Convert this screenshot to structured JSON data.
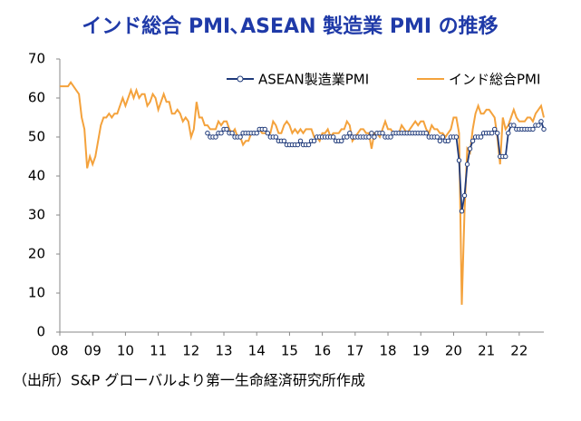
{
  "chart_data": {
    "type": "line",
    "title": "インド総合 PMI､ASEAN 製造業 PMI の推移",
    "note": "（出所）S&P グローバルより第一生命経済研究所作成",
    "categories": [
      "08",
      null,
      null,
      null,
      null,
      null,
      null,
      null,
      null,
      null,
      null,
      null,
      "09",
      null,
      null,
      null,
      null,
      null,
      null,
      null,
      null,
      null,
      null,
      null,
      "10",
      null,
      null,
      null,
      null,
      null,
      null,
      null,
      null,
      null,
      null,
      null,
      "11",
      null,
      null,
      null,
      null,
      null,
      null,
      null,
      null,
      null,
      null,
      null,
      "12",
      null,
      null,
      null,
      null,
      null,
      null,
      null,
      null,
      null,
      null,
      null,
      "13",
      null,
      null,
      null,
      null,
      null,
      null,
      null,
      null,
      null,
      null,
      null,
      "14",
      null,
      null,
      null,
      null,
      null,
      null,
      null,
      null,
      null,
      null,
      null,
      "15",
      null,
      null,
      null,
      null,
      null,
      null,
      null,
      null,
      null,
      null,
      null,
      "16",
      null,
      null,
      null,
      null,
      null,
      null,
      null,
      null,
      null,
      null,
      null,
      "17",
      null,
      null,
      null,
      null,
      null,
      null,
      null,
      null,
      null,
      null,
      null,
      "18",
      null,
      null,
      null,
      null,
      null,
      null,
      null,
      null,
      null,
      null,
      null,
      "19",
      null,
      null,
      null,
      null,
      null,
      null,
      null,
      null,
      null,
      null,
      null,
      "20",
      null,
      null,
      null,
      null,
      null,
      null,
      null,
      null,
      null,
      null,
      null,
      "21",
      null,
      null,
      null,
      null,
      null,
      null,
      null,
      null,
      null,
      null,
      null,
      "22",
      null,
      null,
      null,
      null,
      null,
      null,
      null,
      null,
      null
    ],
    "series": [
      {
        "name": "ASEAN製造業PMI",
        "color": "#1f3a7a",
        "markers": true,
        "values": [
          null,
          null,
          null,
          null,
          null,
          null,
          null,
          null,
          null,
          null,
          null,
          null,
          null,
          null,
          null,
          null,
          null,
          null,
          null,
          null,
          null,
          null,
          null,
          null,
          null,
          null,
          null,
          null,
          null,
          null,
          null,
          null,
          null,
          null,
          null,
          null,
          null,
          null,
          null,
          null,
          null,
          null,
          null,
          null,
          null,
          null,
          null,
          null,
          null,
          null,
          null,
          null,
          null,
          null,
          51,
          50,
          50,
          50,
          51,
          51,
          52,
          52,
          51,
          51,
          50,
          50,
          50,
          51,
          51,
          51,
          51,
          51,
          51,
          52,
          52,
          52,
          51,
          50,
          50,
          50,
          49,
          49,
          49,
          48,
          48,
          48,
          48,
          48,
          49,
          48,
          48,
          48,
          49,
          49,
          50,
          50,
          50,
          50,
          50,
          50,
          50,
          49,
          49,
          49,
          50,
          50,
          51,
          50,
          50,
          50,
          50,
          50,
          50,
          50,
          51,
          50,
          51,
          51,
          51,
          50,
          50,
          50,
          51,
          51,
          51,
          51,
          51,
          51,
          51,
          51,
          51,
          51,
          51,
          51,
          51,
          50,
          50,
          50,
          50,
          49,
          50,
          49,
          49,
          50,
          50,
          50,
          44,
          31,
          35,
          43,
          47,
          49,
          50,
          50,
          50,
          51,
          51,
          51,
          51,
          52,
          51,
          45,
          45,
          45,
          51,
          53,
          53,
          52,
          52,
          52,
          52,
          52,
          52,
          52,
          53,
          53,
          54,
          52
        ]
      },
      {
        "name": "インド総合PMI",
        "color": "#f4a23c",
        "markers": false,
        "values": [
          63,
          63,
          63,
          63,
          64,
          63,
          62,
          61,
          55,
          52,
          42,
          45,
          43,
          45,
          49,
          53,
          55,
          55,
          56,
          55,
          56,
          56,
          58,
          60,
          58,
          60,
          62,
          60,
          62,
          60,
          61,
          61,
          58,
          59,
          61,
          60,
          57,
          59,
          61,
          59,
          59,
          56,
          56,
          57,
          56,
          54,
          55,
          54,
          50,
          52,
          59,
          55,
          55,
          53,
          53,
          52,
          52,
          52,
          54,
          53,
          54,
          54,
          52,
          51,
          52,
          50,
          50,
          48,
          49,
          49,
          51,
          51,
          51,
          52,
          51,
          51,
          51,
          51,
          54,
          53,
          51,
          51,
          53,
          54,
          53,
          51,
          52,
          51,
          52,
          51,
          52,
          52,
          52,
          50,
          50,
          49,
          51,
          51,
          52,
          50,
          51,
          51,
          51,
          52,
          52,
          54,
          53,
          49,
          50,
          51,
          52,
          52,
          51,
          51,
          47,
          51,
          51,
          50,
          52,
          54,
          52,
          52,
          51,
          51,
          51,
          53,
          52,
          51,
          52,
          53,
          54,
          53,
          54,
          54,
          52,
          51,
          53,
          52,
          52,
          51,
          51,
          50,
          51,
          52,
          55,
          55,
          51,
          7,
          31,
          47,
          46,
          52,
          56,
          58,
          56,
          56,
          57,
          57,
          56,
          55,
          50,
          43,
          55,
          52,
          53,
          55,
          57,
          55,
          54,
          54,
          54,
          55,
          55,
          54,
          56,
          57,
          58,
          55
        ]
      }
    ],
    "ylim": [
      0,
      70
    ],
    "yticks": [
      0,
      10,
      20,
      30,
      40,
      50,
      60,
      70
    ],
    "grid": false,
    "legend": "top"
  }
}
